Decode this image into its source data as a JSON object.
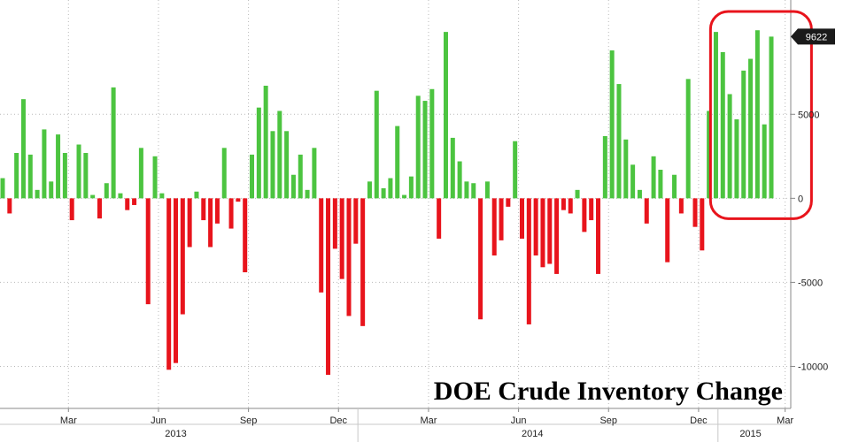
{
  "chart_data": {
    "type": "bar",
    "title": "DOE Crude Inventory Change",
    "last_value_label": "9622",
    "ylim": [
      -12500,
      11800
    ],
    "y_ticks": [
      {
        "value": 5000,
        "label": "5000"
      },
      {
        "value": 0,
        "label": "0"
      },
      {
        "value": -5000,
        "label": "-5000"
      },
      {
        "value": -10000,
        "label": "-10000"
      }
    ],
    "month_ticks": [
      {
        "week": 9.5,
        "label": "Mar"
      },
      {
        "week": 22.5,
        "label": "Jun"
      },
      {
        "week": 35.5,
        "label": "Sep"
      },
      {
        "week": 48.5,
        "label": "Dec"
      },
      {
        "week": 61.5,
        "label": "Mar"
      },
      {
        "week": 74.5,
        "label": "Jun"
      },
      {
        "week": 87.5,
        "label": "Sep"
      },
      {
        "week": 100.5,
        "label": "Dec"
      },
      {
        "week": 113,
        "label": "Mar"
      }
    ],
    "year_labels": [
      {
        "week": 25,
        "label": "2013"
      },
      {
        "week": 76.5,
        "label": "2014"
      },
      {
        "week": 108,
        "label": "2015"
      }
    ],
    "year_separators": [
      51.3,
      103.3
    ],
    "highlight": {
      "from_week": 103.5,
      "to_week": 114.5
    },
    "positive_color": "#4cc440",
    "negative_color": "#e8141c",
    "values": [
      1200,
      -900,
      2700,
      5900,
      2600,
      500,
      4100,
      1000,
      3800,
      2700,
      -1300,
      3200,
      2700,
      200,
      -1200,
      900,
      6600,
      300,
      -700,
      -400,
      3000,
      -6300,
      2500,
      300,
      -10200,
      -9800,
      -6900,
      -2900,
      400,
      -1300,
      -2900,
      -1500,
      3000,
      -1800,
      -200,
      -4400,
      2600,
      5400,
      6700,
      4000,
      5200,
      4000,
      1400,
      2600,
      500,
      3000,
      -5600,
      -10500,
      -3000,
      -4800,
      -7000,
      -2700,
      -7600,
      1000,
      6400,
      600,
      1200,
      4300,
      200,
      1300,
      6100,
      5800,
      6500,
      -2400,
      9900,
      3600,
      2200,
      1000,
      900,
      -7200,
      1000,
      -3400,
      -2500,
      -500,
      3400,
      -2400,
      -7500,
      -3400,
      -4100,
      -3900,
      -4500,
      -700,
      -900,
      500,
      -2000,
      -1300,
      -4500,
      3700,
      8800,
      6800,
      3500,
      2000,
      500,
      -1500,
      2500,
      1700,
      -3800,
      1400,
      -900,
      7100,
      -1700,
      -3100,
      5200,
      9900,
      8700,
      6200,
      4700,
      7600,
      8300,
      10000,
      4400,
      9622
    ]
  }
}
